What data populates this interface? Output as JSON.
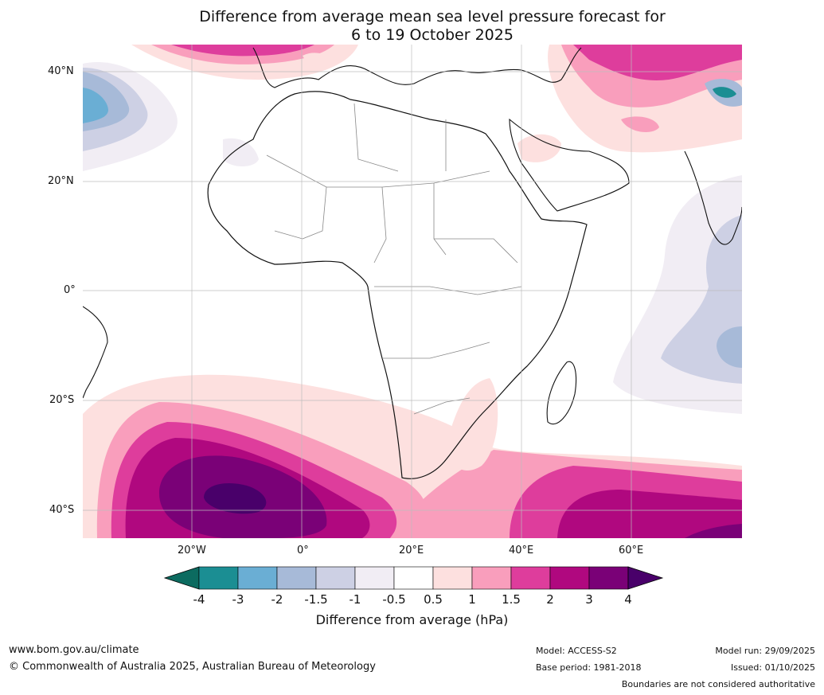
{
  "title": {
    "line1": "Difference from average mean sea level pressure forecast for",
    "line2": "6 to 19 October 2025"
  },
  "map": {
    "lat_labels": [
      "40°N",
      "20°N",
      "0°",
      "20°S",
      "40°S"
    ],
    "lon_labels": [
      "20°W",
      "0°",
      "20°E",
      "40°E",
      "60°E"
    ]
  },
  "colorbar": {
    "ticks": [
      "-4",
      "-3",
      "-2",
      "-1.5",
      "-1",
      "-0.5",
      "0.5",
      "1",
      "1.5",
      "2",
      "3",
      "4"
    ],
    "colors": [
      "#1b8e93",
      "#6aaed4",
      "#a7bad8",
      "#cdd0e4",
      "#f1edf4",
      "#ffffff",
      "#fde0df",
      "#f99ebc",
      "#de3d9c",
      "#b0087f",
      "#7a0177"
    ],
    "under_color": "#0c6b60",
    "over_color": "#49006a",
    "title": "Difference from average (hPa)"
  },
  "footer": {
    "website": "www.bom.gov.au/climate",
    "copyright": "© Commonwealth of Australia 2025, Australian Bureau of Meteorology",
    "model": "Model: ACCESS-S2",
    "base_period": "Base period: 1981-2018",
    "model_run": "Model run: 29/09/2025",
    "issued": "Issued: 01/10/2025",
    "disclaimer": "Boundaries are not considered authoritative"
  }
}
